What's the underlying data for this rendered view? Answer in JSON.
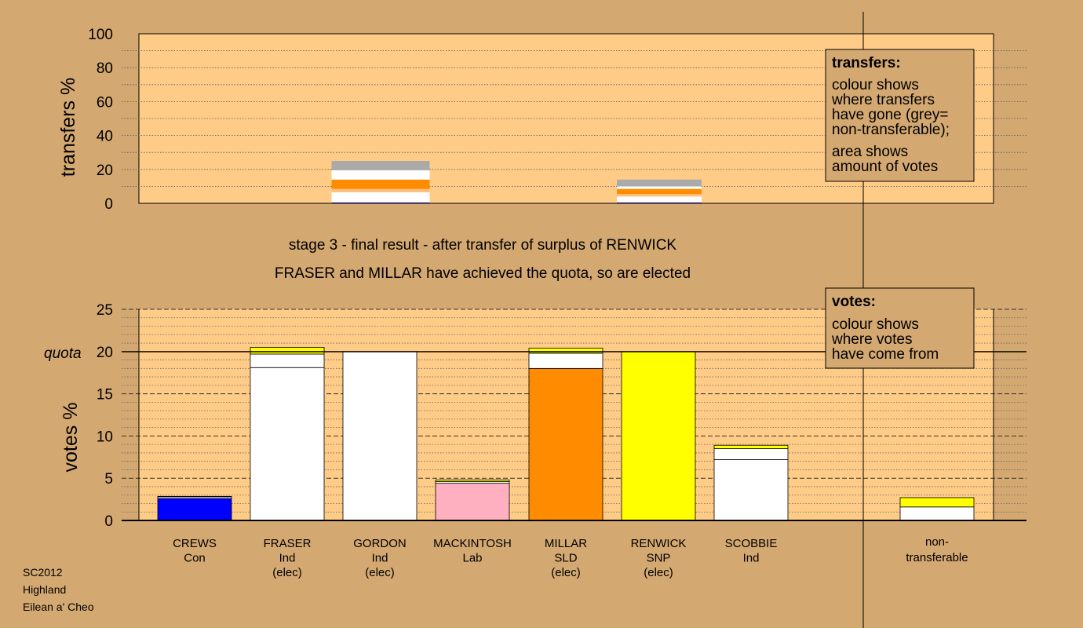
{
  "chart_data": [
    {
      "type": "bar",
      "name": "transfers",
      "ylabel": "transfers %",
      "ylim": [
        0,
        100
      ],
      "yticks": [
        "0",
        "20",
        "40",
        "60",
        "80",
        "100"
      ],
      "stacks": [
        {
          "slot": 2,
          "segments": [
            {
              "color": "#000080",
              "from": 0,
              "to": 0.5
            },
            {
              "color": "#ffffff",
              "from": 0.5,
              "to": 6.5
            },
            {
              "color": "#ffc080",
              "from": 6.5,
              "to": 8.5
            },
            {
              "color": "#ff8c00",
              "from": 8.5,
              "to": 14
            },
            {
              "color": "#ffffff",
              "from": 14,
              "to": 19.5
            },
            {
              "color": "#aaaaaa",
              "from": 19.5,
              "to": 25
            }
          ]
        },
        {
          "slot": 5,
          "segments": [
            {
              "color": "#000080",
              "from": 0,
              "to": 0.5
            },
            {
              "color": "#ffffff",
              "from": 0.5,
              "to": 4
            },
            {
              "color": "#ffc080",
              "from": 4,
              "to": 5.5
            },
            {
              "color": "#ff8c00",
              "from": 5.5,
              "to": 8.5
            },
            {
              "color": "#ffffff",
              "from": 8.5,
              "to": 10
            },
            {
              "color": "#aaaaaa",
              "from": 10,
              "to": 14
            }
          ]
        }
      ]
    },
    {
      "type": "bar",
      "name": "votes",
      "ylabel": "votes %",
      "ylim": [
        0,
        25
      ],
      "yticks": [
        "0",
        "5",
        "10",
        "15",
        "20",
        "25"
      ],
      "quota": 20,
      "quota_label": "quota",
      "categories": [
        "CREWS",
        "FRASER",
        "GORDON",
        "MACKINTOSH",
        "MILLAR",
        "RENWICK",
        "SCOBBIE",
        "non-transferable"
      ],
      "stacks": [
        {
          "slot": 0,
          "segments": [
            {
              "color": "#0000ff",
              "from": 0,
              "to": 2.6
            },
            {
              "color": "#ffffff",
              "from": 2.6,
              "to": 2.8
            },
            {
              "color": "#000080",
              "from": 2.8,
              "to": 2.85
            }
          ]
        },
        {
          "slot": 1,
          "segments": [
            {
              "color": "#ffffff",
              "from": 0,
              "to": 18.1
            },
            {
              "color": "#ffffff",
              "from": 18.1,
              "to": 19.7
            },
            {
              "color": "#ffff00",
              "from": 19.7,
              "to": 20.5
            }
          ]
        },
        {
          "slot": 2,
          "segments": [
            {
              "color": "#ffffff",
              "from": 0,
              "to": 20
            }
          ]
        },
        {
          "slot": 3,
          "segments": [
            {
              "color": "#ffb0c0",
              "from": 0,
              "to": 4.4
            },
            {
              "color": "#ffffff",
              "from": 4.4,
              "to": 4.6
            },
            {
              "color": "#ffff00",
              "from": 4.6,
              "to": 4.8
            }
          ]
        },
        {
          "slot": 4,
          "segments": [
            {
              "color": "#ff8c00",
              "from": 0,
              "to": 18
            },
            {
              "color": "#ffffff",
              "from": 18,
              "to": 19.8
            },
            {
              "color": "#ffff00",
              "from": 19.8,
              "to": 20.4
            }
          ]
        },
        {
          "slot": 5,
          "segments": [
            {
              "color": "#ffff00",
              "from": 0,
              "to": 20
            }
          ]
        },
        {
          "slot": 6,
          "segments": [
            {
              "color": "#ffffff",
              "from": 0,
              "to": 7.2
            },
            {
              "color": "#ffffff",
              "from": 7.2,
              "to": 8.5
            },
            {
              "color": "#ffff00",
              "from": 8.5,
              "to": 8.9
            }
          ]
        },
        {
          "slot": 7,
          "segments": [
            {
              "color": "#ffffff",
              "from": 0,
              "to": 1.6
            },
            {
              "color": "#ffff00",
              "from": 1.6,
              "to": 2.7
            }
          ]
        }
      ]
    }
  ],
  "headings": {
    "line1": "stage 3 - final result - after transfer of surplus of RENWICK",
    "line2": "FRASER and MILLAR have achieved the quota, so are elected"
  },
  "candidates": [
    {
      "name": "CREWS",
      "party": "Con",
      "status": ""
    },
    {
      "name": "FRASER",
      "party": "Ind",
      "status": "(elec)"
    },
    {
      "name": "GORDON",
      "party": "Ind",
      "status": "(elec)"
    },
    {
      "name": "MACKINTOSH",
      "party": "Lab",
      "status": ""
    },
    {
      "name": "MILLAR",
      "party": "SLD",
      "status": "(elec)"
    },
    {
      "name": "RENWICK",
      "party": "SNP",
      "status": "(elec)"
    },
    {
      "name": "SCOBBIE",
      "party": "Ind",
      "status": ""
    }
  ],
  "nontransferable": {
    "line1": "non-",
    "line2": "transferable"
  },
  "legend_transfers": {
    "title": "transfers:",
    "lines": [
      "colour shows",
      "where transfers",
      "have gone (grey=",
      "non-transferable);",
      "area shows",
      "amount of votes"
    ]
  },
  "legend_votes": {
    "title": "votes:",
    "lines": [
      "colour shows",
      "where votes",
      "have come from"
    ]
  },
  "footer": [
    "SC2012",
    "Highland",
    "Eilean a' Cheo"
  ],
  "colors": {
    "background": "#d4a871",
    "plot_area": "#ffcc88",
    "legend_box": "#d4a871"
  }
}
